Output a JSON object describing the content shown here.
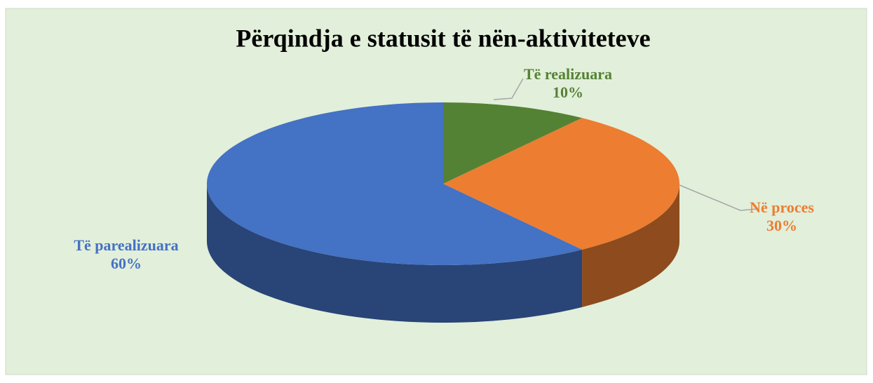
{
  "chart_data": {
    "type": "pie",
    "title": "Përqindja e statusit të nën-aktiviteteve",
    "categories": [
      "Të realizuara",
      "Në proces",
      "Të parealizuara"
    ],
    "values": [
      10,
      30,
      60
    ],
    "value_labels": [
      "10%",
      "30%",
      "60%"
    ],
    "colors": [
      "#548235",
      "#ED7D31",
      "#4472C4"
    ]
  }
}
